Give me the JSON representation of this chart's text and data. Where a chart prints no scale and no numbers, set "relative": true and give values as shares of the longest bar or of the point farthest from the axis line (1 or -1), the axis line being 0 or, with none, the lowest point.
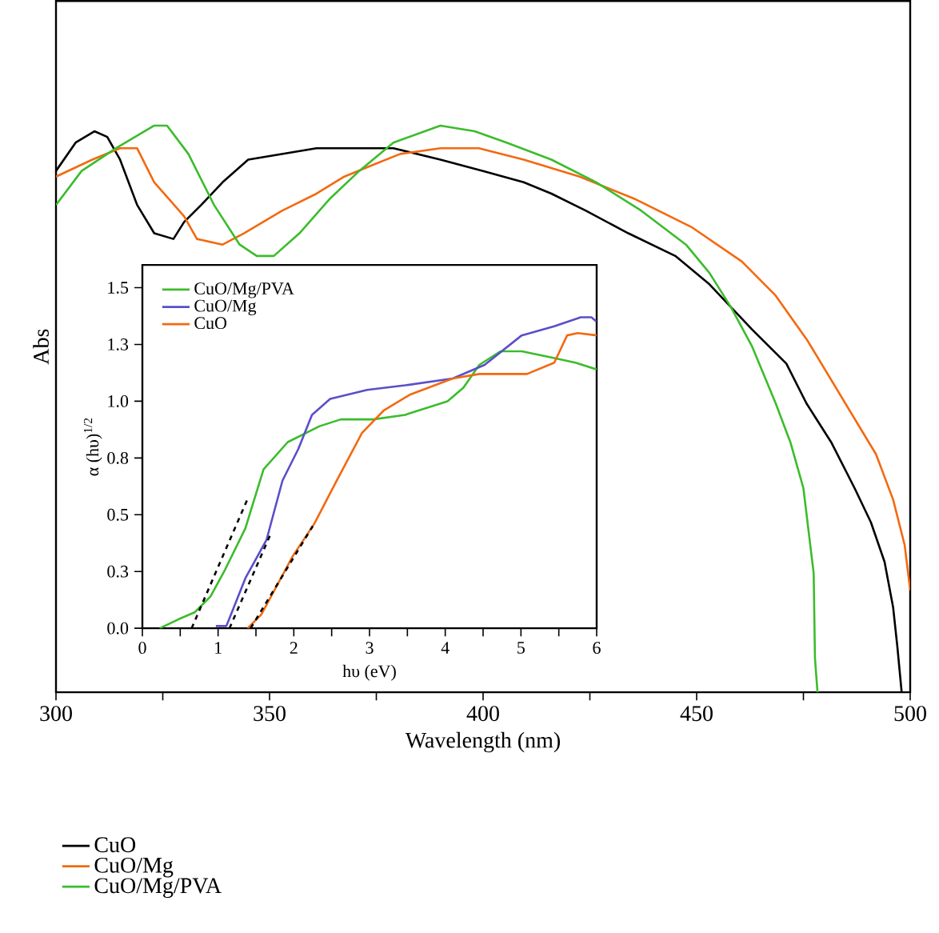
{
  "chart_data": [
    {
      "type": "line",
      "xlabel": "Wavelength (nm)",
      "ylabel": "Abs",
      "relative": true,
      "legend": "bottom",
      "line_style": "solid",
      "xlim": [
        300,
        500
      ],
      "xticks": [
        300,
        {
          "value": 325,
          "label": null
        },
        350,
        {
          "value": 375,
          "label": null
        },
        400,
        {
          "value": 425,
          "label": null
        },
        450,
        {
          "value": 475,
          "label": null
        },
        500
      ],
      "series": [
        {
          "name": "CuO",
          "color": "#000000",
          "x": [
            300,
            304.6,
            309,
            312,
            315,
            319,
            323,
            327.5,
            330,
            334,
            339,
            345,
            353,
            361,
            371,
            379,
            390,
            400,
            409.5,
            416,
            424,
            434,
            445,
            453,
            458,
            463,
            471,
            475.7,
            481.6,
            487,
            490.8,
            494,
            496,
            497,
            498
          ],
          "values": [
            0.92,
            0.97,
            0.99,
            0.98,
            0.94,
            0.86,
            0.81,
            0.8,
            0.83,
            0.86,
            0.9,
            0.94,
            0.95,
            0.96,
            0.96,
            0.96,
            0.94,
            0.92,
            0.9,
            0.88,
            0.85,
            0.81,
            0.77,
            0.72,
            0.68,
            0.64,
            0.58,
            0.51,
            0.44,
            0.36,
            0.3,
            0.23,
            0.15,
            0.08,
            0.0
          ]
        },
        {
          "name": "CuO/Mg",
          "color": "#f26a10",
          "x": [
            300,
            308.5,
            315,
            319,
            323,
            330,
            333,
            339,
            344,
            353,
            361,
            367.5,
            374,
            380.6,
            390,
            399,
            409.5,
            422.6,
            435.7,
            449,
            460.6,
            468.5,
            476,
            484,
            492,
            496,
            498.7,
            500
          ],
          "values": [
            0.91,
            0.94,
            0.96,
            0.96,
            0.9,
            0.84,
            0.8,
            0.79,
            0.81,
            0.85,
            0.88,
            0.91,
            0.93,
            0.95,
            0.96,
            0.96,
            0.94,
            0.91,
            0.87,
            0.82,
            0.76,
            0.7,
            0.62,
            0.52,
            0.42,
            0.34,
            0.26,
            0.18
          ]
        },
        {
          "name": "CuO/Mg/PVA",
          "color": "#3cbc2c",
          "x": [
            300,
            306,
            314,
            323,
            326,
            331,
            337,
            343,
            347,
            351,
            357,
            364,
            371,
            379,
            390,
            398,
            405.5,
            416,
            426.5,
            437,
            447.5,
            453,
            458,
            463,
            468.5,
            472,
            475,
            476.6,
            477.4,
            477.7,
            478.3
          ],
          "values": [
            0.86,
            0.92,
            0.96,
            1.0,
            1.0,
            0.95,
            0.86,
            0.79,
            0.77,
            0.77,
            0.81,
            0.87,
            0.92,
            0.97,
            1.0,
            0.99,
            0.97,
            0.94,
            0.9,
            0.85,
            0.79,
            0.74,
            0.68,
            0.61,
            0.51,
            0.44,
            0.36,
            0.26,
            0.21,
            0.06,
            0.0
          ]
        }
      ]
    },
    {
      "type": "line",
      "xlabel": "hυ (eV)",
      "ylabel": "α (hυ)$^{1/2}$",
      "legend": "top left",
      "line_style": "solid",
      "xlim": [
        0,
        6
      ],
      "xticks": [
        0,
        {
          "value": 0.5,
          "label": null
        },
        1,
        {
          "value": 1.5,
          "label": null
        },
        2,
        {
          "value": 2.5,
          "label": null
        },
        3,
        {
          "value": 3.5,
          "label": null
        },
        4,
        {
          "value": 4.5,
          "label": null
        },
        5,
        {
          "value": 5.5,
          "label": null
        },
        6
      ],
      "ylim": [
        0,
        1.6
      ],
      "yticks": [
        {
          "value": 0,
          "label": "0.0"
        },
        {
          "value": 0.25,
          "label": "0.3"
        },
        0.5,
        {
          "value": 0.75,
          "label": "0.8"
        },
        {
          "value": 1.0,
          "label": "1.0"
        },
        {
          "value": 1.25,
          "label": "1.3"
        },
        1.5
      ],
      "series": [
        {
          "name": "CuO/Mg/PVA",
          "color": "#3cbc2c",
          "x": [
            0.23,
            0.48,
            0.69,
            0.9,
            1.08,
            1.36,
            1.6,
            1.92,
            2.34,
            2.62,
            3.05,
            3.47,
            4.03,
            4.24,
            4.45,
            4.73,
            5.01,
            5.44,
            5.72,
            6.0
          ],
          "values": [
            0,
            0.04,
            0.07,
            0.14,
            0.25,
            0.44,
            0.7,
            0.82,
            0.89,
            0.92,
            0.92,
            0.94,
            1.0,
            1.06,
            1.16,
            1.22,
            1.22,
            1.19,
            1.17,
            1.14
          ]
        },
        {
          "name": "CuO/Mg",
          "color": "#5a4fc8",
          "x": [
            0.97,
            1.11,
            1.36,
            1.64,
            1.85,
            2.06,
            2.24,
            2.48,
            2.97,
            3.47,
            4.1,
            4.52,
            5.01,
            5.44,
            5.79,
            5.93,
            6.0
          ],
          "values": [
            0.01,
            0.01,
            0.22,
            0.39,
            0.65,
            0.79,
            0.94,
            1.01,
            1.05,
            1.07,
            1.1,
            1.16,
            1.29,
            1.33,
            1.37,
            1.37,
            1.35
          ]
        },
        {
          "name": "CuO",
          "color": "#f26a10",
          "x": [
            1.39,
            1.57,
            1.99,
            2.27,
            2.55,
            2.9,
            3.19,
            3.54,
            4.1,
            4.45,
            5.08,
            5.44,
            5.61,
            5.75,
            6.0
          ],
          "values": [
            0,
            0.06,
            0.32,
            0.46,
            0.64,
            0.86,
            0.96,
            1.03,
            1.1,
            1.12,
            1.12,
            1.17,
            1.29,
            1.3,
            1.29
          ]
        },
        {
          "color": "#000000",
          "line_style": "dashed",
          "x": [
            0.65,
            1.39
          ],
          "values": [
            0,
            0.57
          ]
        },
        {
          "color": "#000000",
          "line_style": "dashed",
          "x": [
            1.15,
            1.7
          ],
          "values": [
            0,
            0.42
          ]
        },
        {
          "color": "#000000",
          "line_style": "dashed",
          "x": [
            1.43,
            2.25
          ],
          "values": [
            0,
            0.45
          ]
        }
      ]
    }
  ]
}
